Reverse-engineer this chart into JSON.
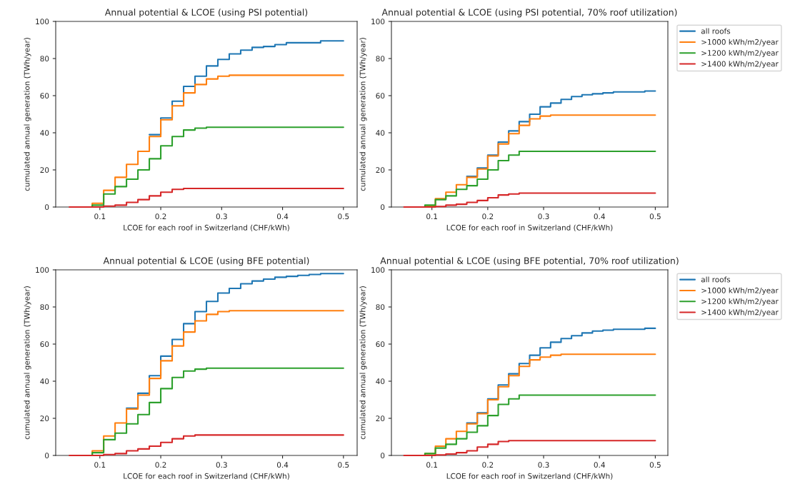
{
  "chart_data": [
    {
      "type": "step",
      "title": "Annual potential & LCOE (using PSI potential)",
      "xlabel": "LCOE for each roof in Switzerland (CHF/kWh)",
      "ylabel": "cumulated annual generation (TWh/year)",
      "x": [
        0.05,
        0.06875,
        0.0875,
        0.10625,
        0.125,
        0.14375,
        0.1625,
        0.18125,
        0.2,
        0.21875,
        0.2375,
        0.25625,
        0.275,
        0.29375,
        0.3125,
        0.33125,
        0.35,
        0.36875,
        0.3875,
        0.40625,
        0.425,
        0.44375,
        0.4625,
        0.48125,
        0.5
      ],
      "xlim": [
        0.0275,
        0.5225
      ],
      "xticks": [
        0.1,
        0.2,
        0.3,
        0.4,
        0.5
      ],
      "ylim": [
        0,
        100
      ],
      "yticks": [
        0,
        20,
        40,
        60,
        80,
        100
      ],
      "legend": false,
      "series": [
        {
          "color": "#1f77b4",
          "values": [
            null,
            null,
            null,
            null,
            null,
            null,
            null,
            39,
            48,
            57,
            65,
            70.5,
            76,
            79.5,
            82.5,
            84.5,
            86,
            86.5,
            87.5,
            88.5,
            88.5,
            88.5,
            89.5,
            89.5,
            89.5
          ]
        },
        {
          "color": "#ff7f0e",
          "values": [
            null,
            0,
            2,
            9,
            16,
            23,
            30,
            38,
            47,
            54.5,
            61.5,
            66,
            69,
            70.5,
            71,
            71,
            71,
            71,
            71,
            71,
            71,
            71,
            71,
            71,
            71
          ]
        },
        {
          "color": "#2ca02c",
          "values": [
            null,
            0,
            1,
            7,
            11,
            15,
            20,
            26,
            33,
            38,
            41.5,
            42.5,
            43,
            43,
            43,
            43,
            43,
            43,
            43,
            43,
            43,
            43,
            43,
            43,
            43
          ]
        },
        {
          "color": "#d62728",
          "values": [
            0,
            0,
            0,
            0.5,
            1,
            2.5,
            4,
            6,
            8,
            9.5,
            10,
            10,
            10,
            10,
            10,
            10,
            10,
            10,
            10,
            10,
            10,
            10,
            10,
            10,
            10
          ]
        }
      ]
    },
    {
      "type": "step",
      "title": "Annual potential & LCOE (using PSI potential, 70% roof utilization)",
      "xlabel": "LCOE for each roof in Switzerland (CHF/kWh)",
      "ylabel": "cumulated annual generation (TWh/year)",
      "x": [
        0.05,
        0.06875,
        0.0875,
        0.10625,
        0.125,
        0.14375,
        0.1625,
        0.18125,
        0.2,
        0.21875,
        0.2375,
        0.25625,
        0.275,
        0.29375,
        0.3125,
        0.33125,
        0.35,
        0.36875,
        0.3875,
        0.40625,
        0.425,
        0.44375,
        0.4625,
        0.48125,
        0.5
      ],
      "xlim": [
        0.0275,
        0.5225
      ],
      "xticks": [
        0.1,
        0.2,
        0.3,
        0.4,
        0.5
      ],
      "ylim": [
        0,
        100
      ],
      "yticks": [
        0,
        20,
        40,
        60,
        80,
        100
      ],
      "legend": "right",
      "series": [
        {
          "name": "all roofs",
          "color": "#1f77b4",
          "values": [
            null,
            null,
            null,
            null,
            null,
            null,
            16.5,
            21,
            28,
            35,
            41,
            46,
            50,
            54,
            56,
            58,
            59.5,
            60.5,
            61,
            61.5,
            62,
            62,
            62,
            62.5,
            62.5
          ]
        },
        {
          "name": ">1000 kWh/m2/year",
          "color": "#ff7f0e",
          "values": [
            null,
            0,
            0.5,
            4.5,
            8,
            12,
            16,
            20.5,
            27.5,
            34,
            39.5,
            44,
            47.5,
            49,
            49.5,
            49.5,
            49.5,
            49.5,
            49.5,
            49.5,
            49.5,
            49.5,
            49.5,
            49.5,
            49.5
          ]
        },
        {
          "name": ">1200 kWh/m2/year",
          "color": "#2ca02c",
          "values": [
            null,
            0,
            1,
            4,
            6,
            9.5,
            11.5,
            15,
            20,
            25,
            28,
            30,
            30,
            30,
            30,
            30,
            30,
            30,
            30,
            30,
            30,
            30,
            30,
            30,
            30
          ]
        },
        {
          "name": ">1400 kWh/m2/year",
          "color": "#d62728",
          "values": [
            0,
            0,
            0,
            0.3,
            1,
            1.5,
            2.5,
            3.5,
            5,
            6.5,
            7,
            7.5,
            7.5,
            7.5,
            7.5,
            7.5,
            7.5,
            7.5,
            7.5,
            7.5,
            7.5,
            7.5,
            7.5,
            7.5,
            7.5
          ]
        }
      ]
    },
    {
      "type": "step",
      "title": "Annual potential & LCOE (using BFE potential)",
      "xlabel": "LCOE for each roof in Switzerland (CHF/kWh)",
      "ylabel": "cumulated annual generation (TWh/year)",
      "x": [
        0.05,
        0.06875,
        0.0875,
        0.10625,
        0.125,
        0.14375,
        0.1625,
        0.18125,
        0.2,
        0.21875,
        0.2375,
        0.25625,
        0.275,
        0.29375,
        0.3125,
        0.33125,
        0.35,
        0.36875,
        0.3875,
        0.40625,
        0.425,
        0.44375,
        0.4625,
        0.48125,
        0.5
      ],
      "xlim": [
        0.0275,
        0.5225
      ],
      "xticks": [
        0.1,
        0.2,
        0.3,
        0.4,
        0.5
      ],
      "ylim": [
        0,
        100
      ],
      "yticks": [
        0,
        20,
        40,
        60,
        80,
        100
      ],
      "legend": false,
      "series": [
        {
          "color": "#1f77b4",
          "values": [
            null,
            null,
            null,
            null,
            null,
            25.5,
            33.5,
            43,
            53.5,
            62.5,
            71,
            77.5,
            83,
            87.5,
            90,
            92.5,
            94,
            95,
            96,
            96.5,
            97,
            97.5,
            98,
            98,
            98
          ]
        },
        {
          "color": "#ff7f0e",
          "values": [
            null,
            0,
            2.5,
            10.5,
            17.5,
            25,
            32.5,
            41.5,
            51,
            59,
            66.5,
            72.5,
            76,
            77.5,
            78,
            78,
            78,
            78,
            78,
            78,
            78,
            78,
            78,
            78,
            78
          ]
        },
        {
          "color": "#2ca02c",
          "values": [
            null,
            0,
            1.5,
            8.5,
            12,
            17,
            22,
            28.5,
            36,
            42,
            45.5,
            46.5,
            47,
            47,
            47,
            47,
            47,
            47,
            47,
            47,
            47,
            47,
            47,
            47,
            47
          ]
        },
        {
          "color": "#d62728",
          "values": [
            0,
            0,
            0,
            0.5,
            1,
            2.5,
            3.5,
            5,
            7,
            9,
            10.5,
            11,
            11,
            11,
            11,
            11,
            11,
            11,
            11,
            11,
            11,
            11,
            11,
            11,
            11
          ]
        }
      ]
    },
    {
      "type": "step",
      "title": "Annual potential & LCOE (using BFE potential, 70% roof utilization)",
      "xlabel": "LCOE for each roof in Switzerland (CHF/kWh)",
      "ylabel": "cumulated annual generation (TWh/year)",
      "x": [
        0.05,
        0.06875,
        0.0875,
        0.10625,
        0.125,
        0.14375,
        0.1625,
        0.18125,
        0.2,
        0.21875,
        0.2375,
        0.25625,
        0.275,
        0.29375,
        0.3125,
        0.33125,
        0.35,
        0.36875,
        0.3875,
        0.40625,
        0.425,
        0.44375,
        0.4625,
        0.48125,
        0.5
      ],
      "xlim": [
        0.0275,
        0.5225
      ],
      "xticks": [
        0.1,
        0.2,
        0.3,
        0.4,
        0.5
      ],
      "ylim": [
        0,
        100
      ],
      "yticks": [
        0,
        20,
        40,
        60,
        80,
        100
      ],
      "legend": "right",
      "series": [
        {
          "name": "all roofs",
          "color": "#1f77b4",
          "values": [
            null,
            null,
            null,
            null,
            null,
            null,
            17.5,
            23,
            30.5,
            38,
            44,
            49.5,
            54,
            58,
            61,
            63,
            64.5,
            66,
            67,
            67.5,
            68,
            68,
            68,
            68.5,
            68.5
          ]
        },
        {
          "name": ">1000 kWh/m2/year",
          "color": "#ff7f0e",
          "values": [
            null,
            0,
            1,
            5,
            9,
            13,
            17,
            22.5,
            30,
            37,
            43,
            48,
            51.5,
            53,
            54,
            54.5,
            54.5,
            54.5,
            54.5,
            54.5,
            54.5,
            54.5,
            54.5,
            54.5,
            54.5
          ]
        },
        {
          "name": ">1200 kWh/m2/year",
          "color": "#2ca02c",
          "values": [
            null,
            0,
            1,
            4,
            6,
            9,
            12.5,
            16,
            21.5,
            27.5,
            30.5,
            32.5,
            32.5,
            32.5,
            32.5,
            32.5,
            32.5,
            32.5,
            32.5,
            32.5,
            32.5,
            32.5,
            32.5,
            32.5,
            32.5
          ]
        },
        {
          "name": ">1400 kWh/m2/year",
          "color": "#d62728",
          "values": [
            0,
            0,
            0,
            0.3,
            0.8,
            1.5,
            2.5,
            4.5,
            6,
            7.5,
            8,
            8,
            8,
            8,
            8,
            8,
            8,
            8,
            8,
            8,
            8,
            8,
            8,
            8,
            8
          ]
        }
      ]
    }
  ]
}
